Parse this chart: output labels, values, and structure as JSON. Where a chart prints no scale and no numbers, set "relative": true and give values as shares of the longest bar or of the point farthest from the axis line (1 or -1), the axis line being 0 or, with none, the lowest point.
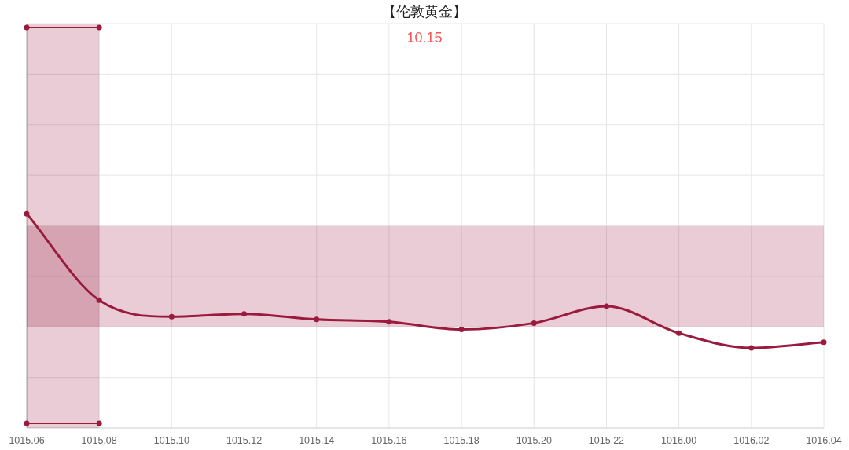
{
  "chart_data": {
    "type": "line",
    "title": "【伦敦黄金】",
    "subtitle": "10.15",
    "relative": true,
    "categories": [
      "1015.06",
      "1015.08",
      "1015.10",
      "1015.12",
      "1015.14",
      "1015.16",
      "1015.18",
      "1015.20",
      "1015.22",
      "1016.00",
      "1016.02",
      "1016.04"
    ],
    "series": [
      {
        "color": "#9b1b3f",
        "values": [
          0.535,
          0.319,
          0.278,
          0.285,
          0.271,
          0.265,
          0.246,
          0.262,
          0.304,
          0.237,
          0.2,
          0.214
        ]
      },
      {
        "color": "#9b1b3f",
        "values": [
          1,
          1,
          null,
          null,
          null,
          null,
          null,
          null,
          null,
          null,
          null,
          null
        ]
      },
      {
        "color": "#9b1b3f",
        "values": [
          0.012,
          0.012,
          null,
          null,
          null,
          null,
          null,
          null,
          null,
          null,
          null,
          null
        ]
      }
    ],
    "bands": [
      {
        "axis": "x",
        "from": "1015.06",
        "to": "1015.08",
        "color": "#e9ccd5"
      },
      {
        "axis": "y",
        "from": 0.252,
        "to": 0.504,
        "color": "#e9ccd5"
      }
    ],
    "grid": true,
    "marker": "circle"
  }
}
